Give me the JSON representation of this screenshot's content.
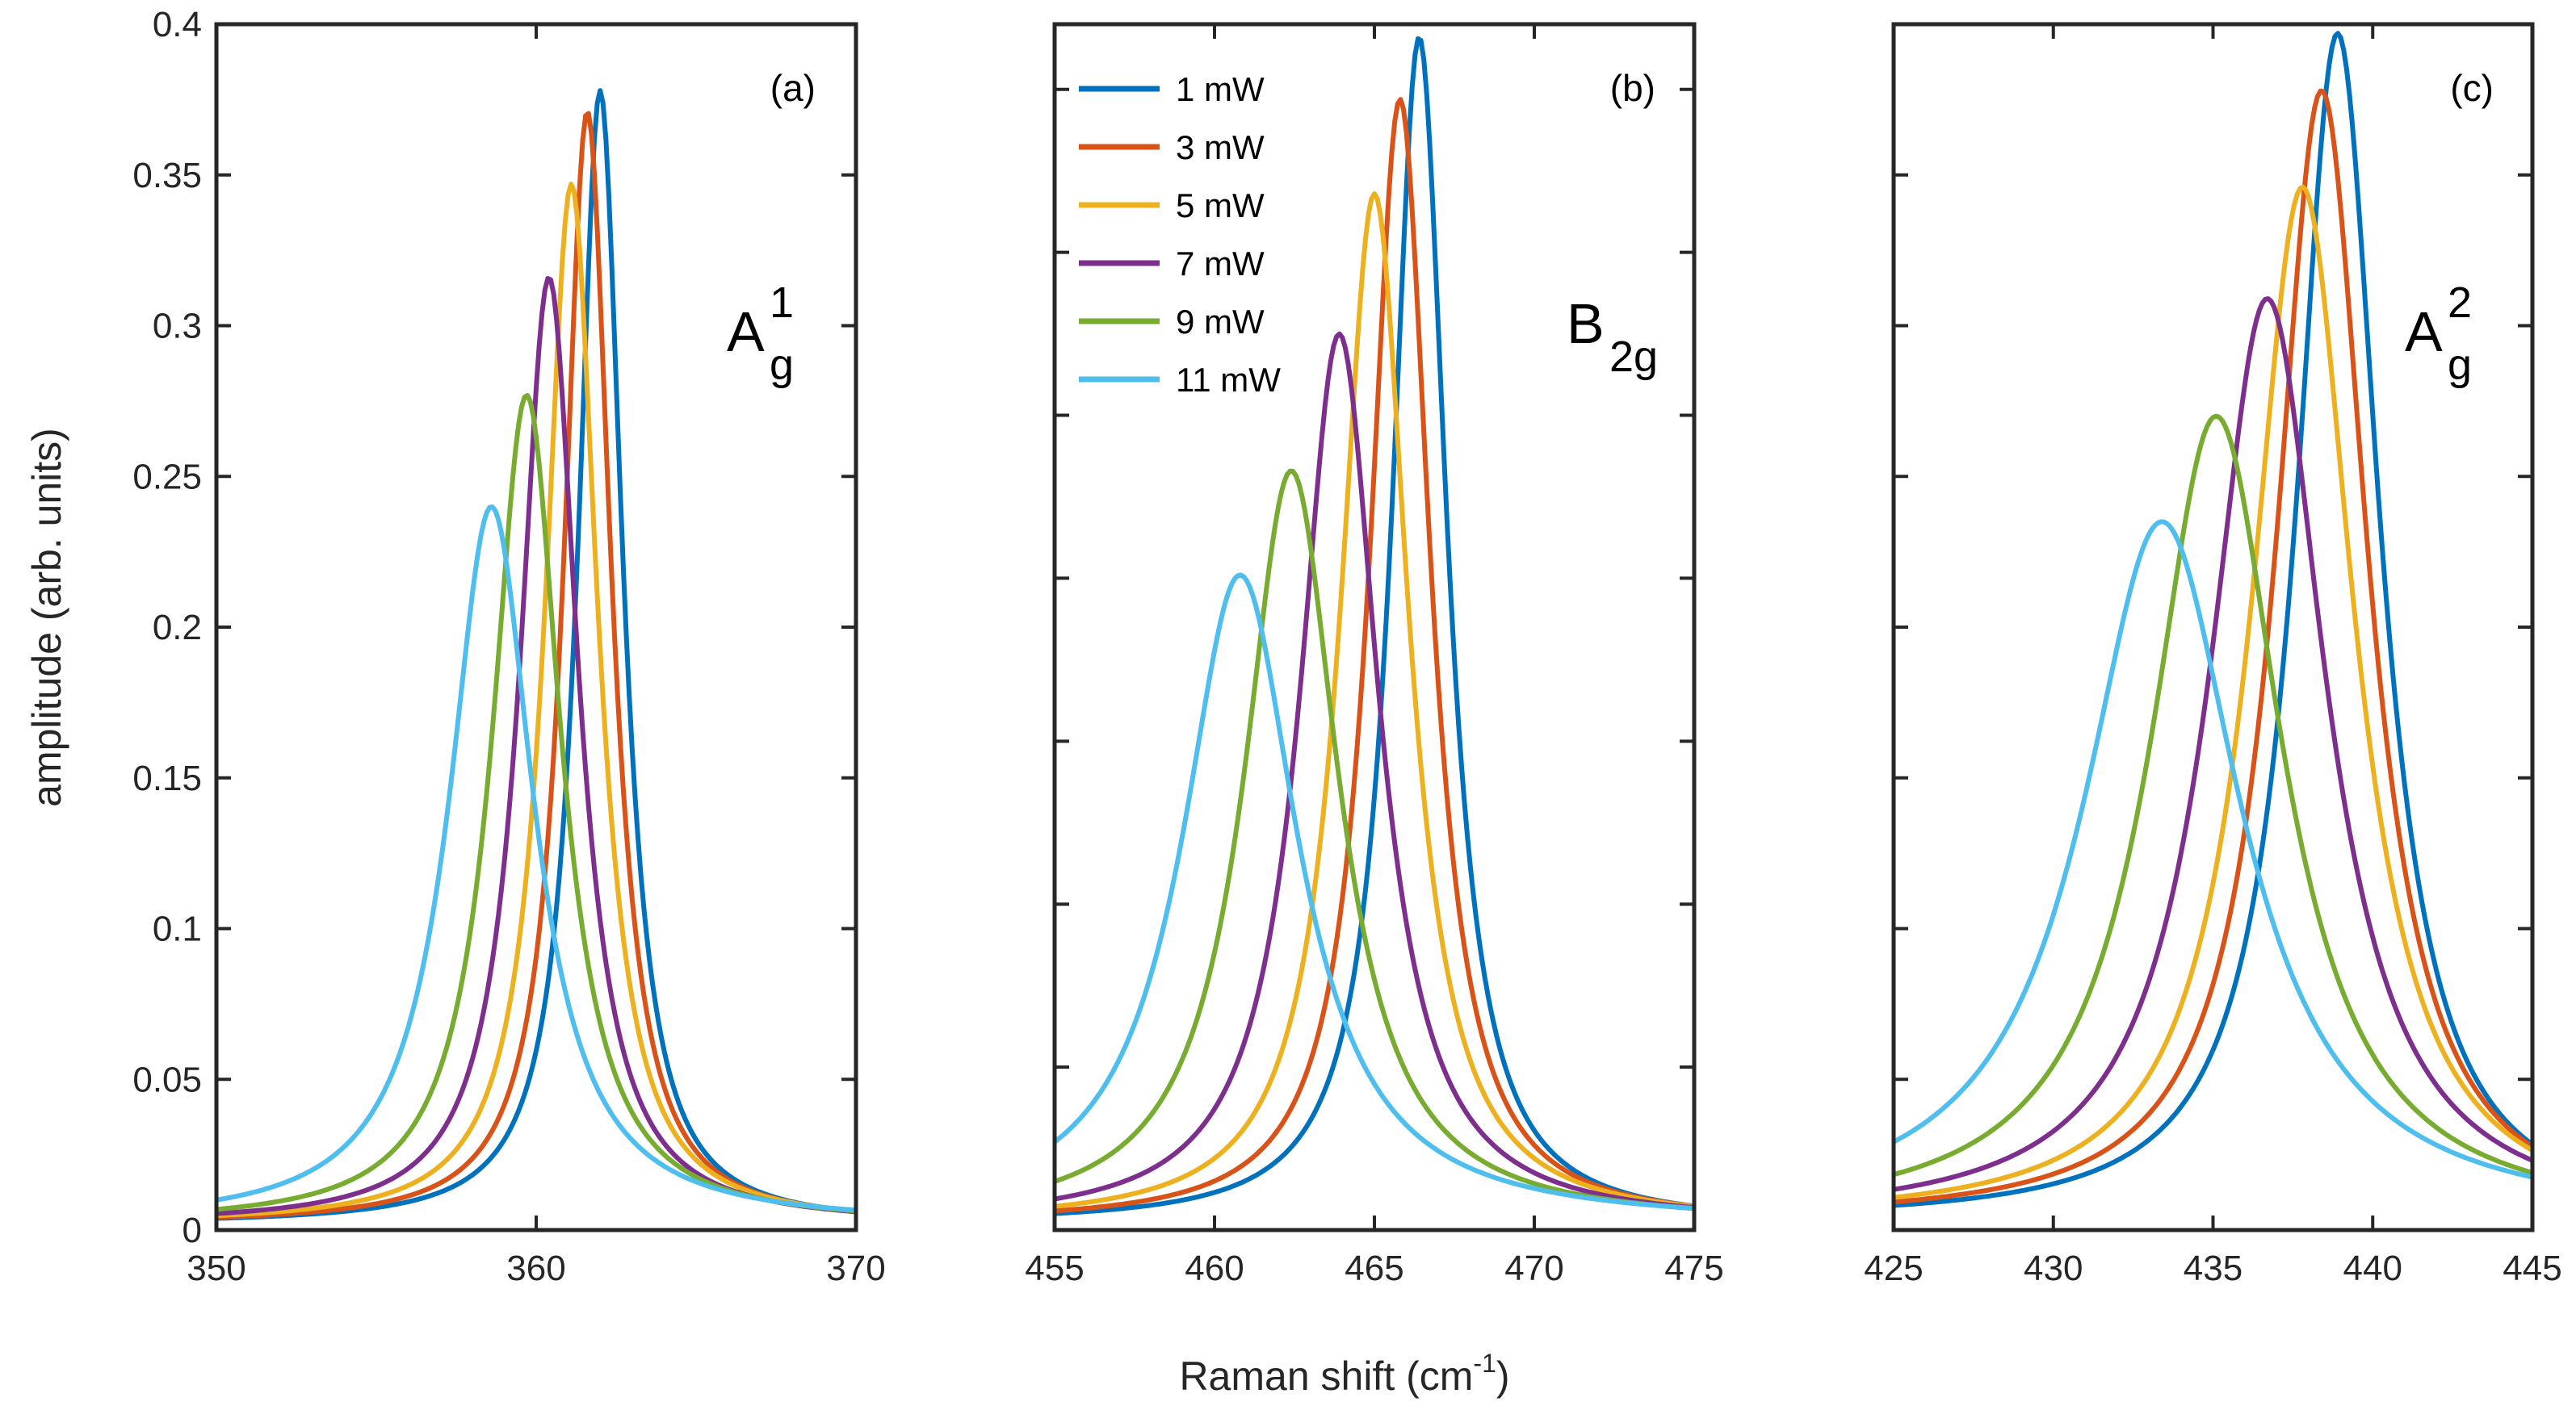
{
  "figure": {
    "ylabel": "amplitude (arb. units)",
    "xlabel": "Raman shift (cm",
    "xlabel_sup": "-1",
    "xlabel_tail": ")"
  },
  "legend": {
    "entries": [
      "1 mW",
      "3 mW",
      "5 mW",
      "7 mW",
      "9 mW",
      "11 mW"
    ],
    "colors": [
      "#0072BD",
      "#D95319",
      "#EDB120",
      "#7E2F8E",
      "#77AC30",
      "#4DBEEE"
    ]
  },
  "chart_data": [
    {
      "type": "line",
      "panel_label": "(a)",
      "mode_main": "A",
      "mode_sup": "1",
      "mode_sub": "g",
      "xlim": [
        350,
        370
      ],
      "ylim": [
        0,
        0.4
      ],
      "xticks": [
        350,
        360,
        370
      ],
      "yticks": [
        0,
        0.05,
        0.1,
        0.15,
        0.2,
        0.25,
        0.3,
        0.35,
        0.4
      ],
      "ytick_labels": [
        "0",
        "0.05",
        "0.1",
        "0.15",
        "0.2",
        "0.25",
        "0.3",
        "0.35",
        "0.4"
      ],
      "series": [
        {
          "name": "1 mW",
          "center": 362.0,
          "amplitude": 0.378,
          "hwhm": 0.85,
          "offset": 0.002
        },
        {
          "name": "3 mW",
          "center": 361.6,
          "amplitude": 0.371,
          "hwhm": 0.9,
          "offset": 0.002
        },
        {
          "name": "5 mW",
          "center": 361.1,
          "amplitude": 0.347,
          "hwhm": 1.0,
          "offset": 0.002
        },
        {
          "name": "7 mW",
          "center": 360.4,
          "amplitude": 0.316,
          "hwhm": 1.1,
          "offset": 0.002
        },
        {
          "name": "9 mW",
          "center": 359.7,
          "amplitude": 0.277,
          "hwhm": 1.3,
          "offset": 0.002
        },
        {
          "name": "11 mW",
          "center": 358.6,
          "amplitude": 0.24,
          "hwhm": 1.6,
          "offset": 0.002
        }
      ]
    },
    {
      "type": "line",
      "panel_label": "(b)",
      "mode_main": "B",
      "mode_sup": "",
      "mode_sub": "2g",
      "xlim": [
        455,
        475
      ],
      "ylim": [
        0,
        0.37
      ],
      "xticks": [
        455,
        460,
        465,
        470,
        475
      ],
      "yticks": [
        0,
        0.05,
        0.1,
        0.15,
        0.2,
        0.25,
        0.3,
        0.35
      ],
      "ytick_labels": [],
      "series": [
        {
          "name": "1 mW",
          "center": 466.4,
          "amplitude": 0.366,
          "hwhm": 1.05,
          "offset": 0.002
        },
        {
          "name": "3 mW",
          "center": 465.8,
          "amplitude": 0.347,
          "hwhm": 1.15,
          "offset": 0.002
        },
        {
          "name": "5 mW",
          "center": 465.0,
          "amplitude": 0.318,
          "hwhm": 1.3,
          "offset": 0.002
        },
        {
          "name": "7 mW",
          "center": 463.9,
          "amplitude": 0.275,
          "hwhm": 1.5,
          "offset": 0.002
        },
        {
          "name": "9 mW",
          "center": 462.4,
          "amplitude": 0.233,
          "hwhm": 1.8,
          "offset": 0.002
        },
        {
          "name": "11 mW",
          "center": 460.8,
          "amplitude": 0.201,
          "hwhm": 2.2,
          "offset": 0.002
        }
      ]
    },
    {
      "type": "line",
      "panel_label": "(c)",
      "mode_main": "A",
      "mode_sup": "2",
      "mode_sub": "g",
      "xlim": [
        425,
        445
      ],
      "ylim": [
        0,
        0.4
      ],
      "xticks": [
        425,
        430,
        435,
        440,
        445
      ],
      "yticks": [
        0,
        0.05,
        0.1,
        0.15,
        0.2,
        0.25,
        0.3,
        0.35,
        0.4
      ],
      "ytick_labels": [],
      "series": [
        {
          "name": "1 mW",
          "center": 438.9,
          "amplitude": 0.397,
          "hwhm": 1.6,
          "offset": 0.003
        },
        {
          "name": "3 mW",
          "center": 438.4,
          "amplitude": 0.378,
          "hwhm": 1.75,
          "offset": 0.003
        },
        {
          "name": "5 mW",
          "center": 437.8,
          "amplitude": 0.346,
          "hwhm": 1.95,
          "offset": 0.003
        },
        {
          "name": "7 mW",
          "center": 436.7,
          "amplitude": 0.309,
          "hwhm": 2.2,
          "offset": 0.003
        },
        {
          "name": "9 mW",
          "center": 435.1,
          "amplitude": 0.27,
          "hwhm": 2.5,
          "offset": 0.003
        },
        {
          "name": "11 mW",
          "center": 433.4,
          "amplitude": 0.235,
          "hwhm": 3.0,
          "offset": 0.003
        }
      ]
    }
  ]
}
